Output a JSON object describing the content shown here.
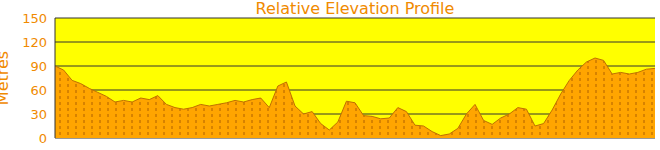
{
  "chart_data": {
    "type": "area",
    "title": "Relative Elevation Profile",
    "y_label": "Metres",
    "values": [
      90,
      85,
      72,
      68,
      62,
      57,
      52,
      45,
      47,
      45,
      50,
      48,
      53,
      42,
      38,
      36,
      38,
      42,
      40,
      42,
      44,
      47,
      45,
      48,
      50,
      38,
      65,
      70,
      40,
      30,
      33,
      18,
      10,
      20,
      46,
      44,
      28,
      27,
      24,
      25,
      38,
      33,
      16,
      15,
      8,
      3,
      5,
      12,
      30,
      42,
      22,
      17,
      25,
      30,
      38,
      36,
      15,
      18,
      35,
      55,
      72,
      85,
      95,
      100,
      97,
      80,
      82,
      80,
      82,
      86,
      87
    ],
    "color": "#ffa500",
    "ylim": [
      0,
      150
    ],
    "yticks": [
      0,
      30,
      60,
      90,
      120,
      150
    ],
    "grid": true,
    "tick_labels": "y"
  }
}
